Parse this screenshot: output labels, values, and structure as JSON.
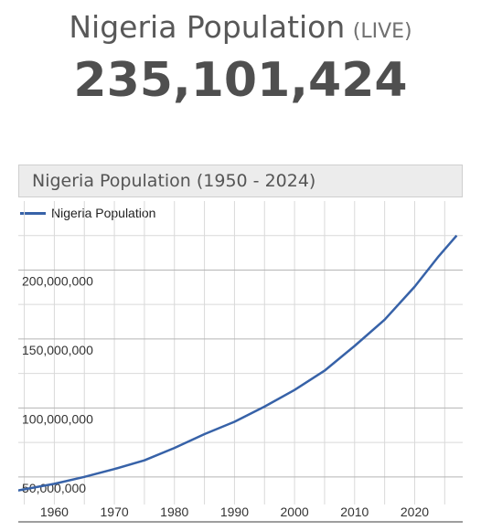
{
  "header": {
    "title": "Nigeria Population",
    "live_tag": "(LIVE)",
    "counter": "235,101,424"
  },
  "chart_data": {
    "type": "line",
    "title": "Nigeria Population (1950 - 2024)",
    "xlabel": "",
    "ylabel": "",
    "legend_position": "top-left",
    "grid": true,
    "xlim": [
      1954,
      2028
    ],
    "ylim": [
      30000000,
      250000000
    ],
    "x_ticks": [
      1960,
      1970,
      1980,
      1990,
      2000,
      2010,
      2020
    ],
    "x_tick_labels": [
      "1960",
      "1970",
      "1980",
      "1990",
      "2000",
      "2010",
      "2020"
    ],
    "y_ticks": [
      50000000,
      100000000,
      150000000,
      200000000
    ],
    "y_tick_labels": [
      "50,000,000",
      "100,000,000",
      "150,000,000",
      "200,000,000"
    ],
    "colors": {
      "series": "#3762a8",
      "grid": "#d9d9d9",
      "axis": "#9a9a9a",
      "tick_text": "#333333"
    },
    "series": [
      {
        "name": "Nigeria Population",
        "x": [
          1950,
          1955,
          1960,
          1965,
          1970,
          1975,
          1980,
          1985,
          1990,
          1995,
          2000,
          2005,
          2010,
          2015,
          2020,
          2024,
          2027
        ],
        "y": [
          37000000,
          41000000,
          45000000,
          50000000,
          55700000,
          62000000,
          71000000,
          81000000,
          90000000,
          101000000,
          113000000,
          127000000,
          145000000,
          164000000,
          188000000,
          210000000,
          225000000
        ]
      }
    ]
  }
}
